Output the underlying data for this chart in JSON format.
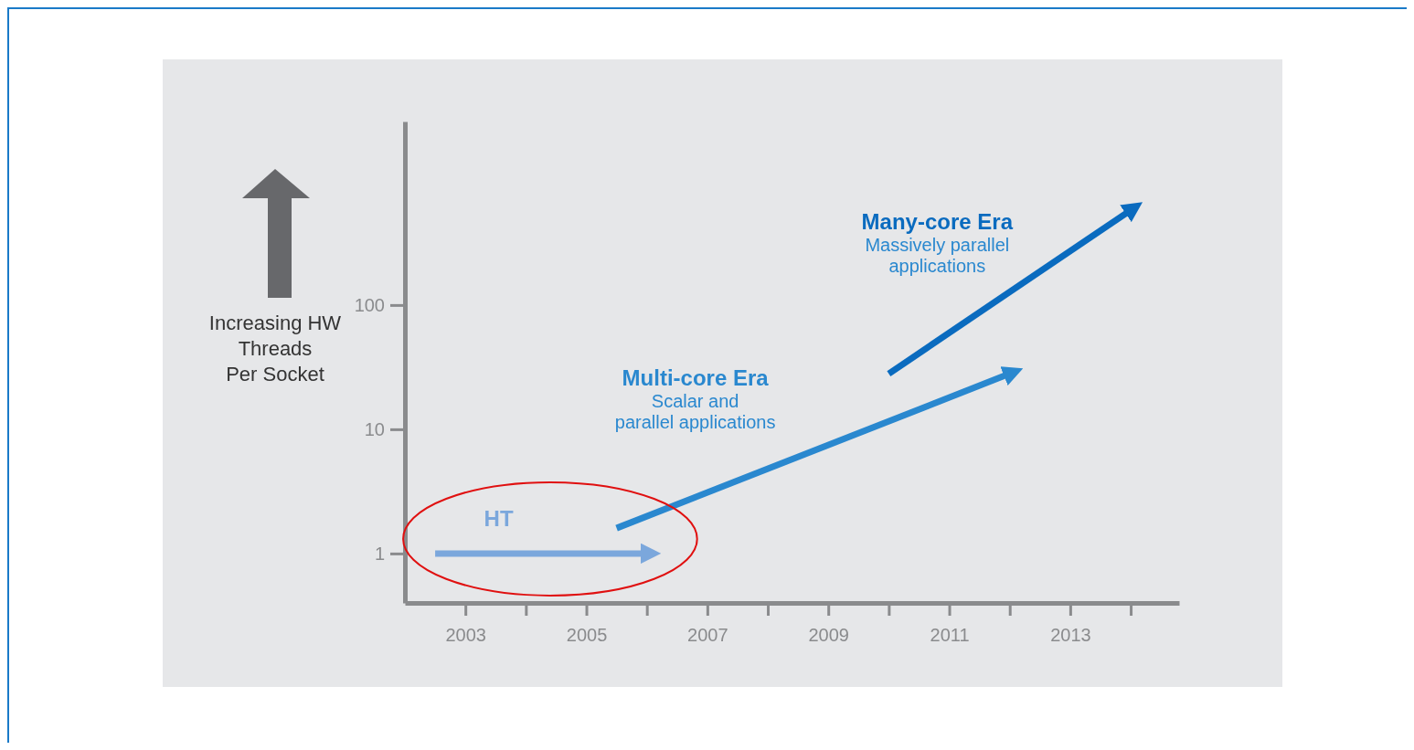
{
  "chart_data": {
    "type": "line",
    "ylabel": "Increasing HW\nThreads\nPer Socket",
    "log": "y",
    "xlim": [
      2002,
      2014.8
    ],
    "ylim": [
      0.4,
      3000
    ],
    "xticks": [
      2003,
      {
        "value": 2004,
        "label": null
      },
      2005,
      {
        "value": 2006,
        "label": null
      },
      2007,
      {
        "value": 2008,
        "label": null
      },
      2009,
      {
        "value": 2010,
        "label": null
      },
      2011,
      {
        "value": 2012,
        "label": null
      },
      2013,
      {
        "value": 2014,
        "label": null
      }
    ],
    "yticks": [
      1,
      10,
      100
    ],
    "grid": false,
    "marker": "none",
    "line_style": "solid",
    "series": [
      {
        "name": "HT",
        "color": "#7ba7dc",
        "x": [
          2002.5,
          2006.0
        ],
        "values": [
          1,
          1
        ]
      },
      {
        "name": "Multi-core Era",
        "color": "#2a88cf",
        "x": [
          2005.5,
          2012.0
        ],
        "values": [
          1.6,
          28
        ]
      },
      {
        "name": "Many-core Era",
        "color": "#0a6bbf",
        "x": [
          2010.0,
          2014.0
        ],
        "values": [
          28,
          580
        ]
      }
    ],
    "annotations": [
      "Scalar and\nparallel applications",
      "Massively parallel\napplications"
    ]
  }
}
